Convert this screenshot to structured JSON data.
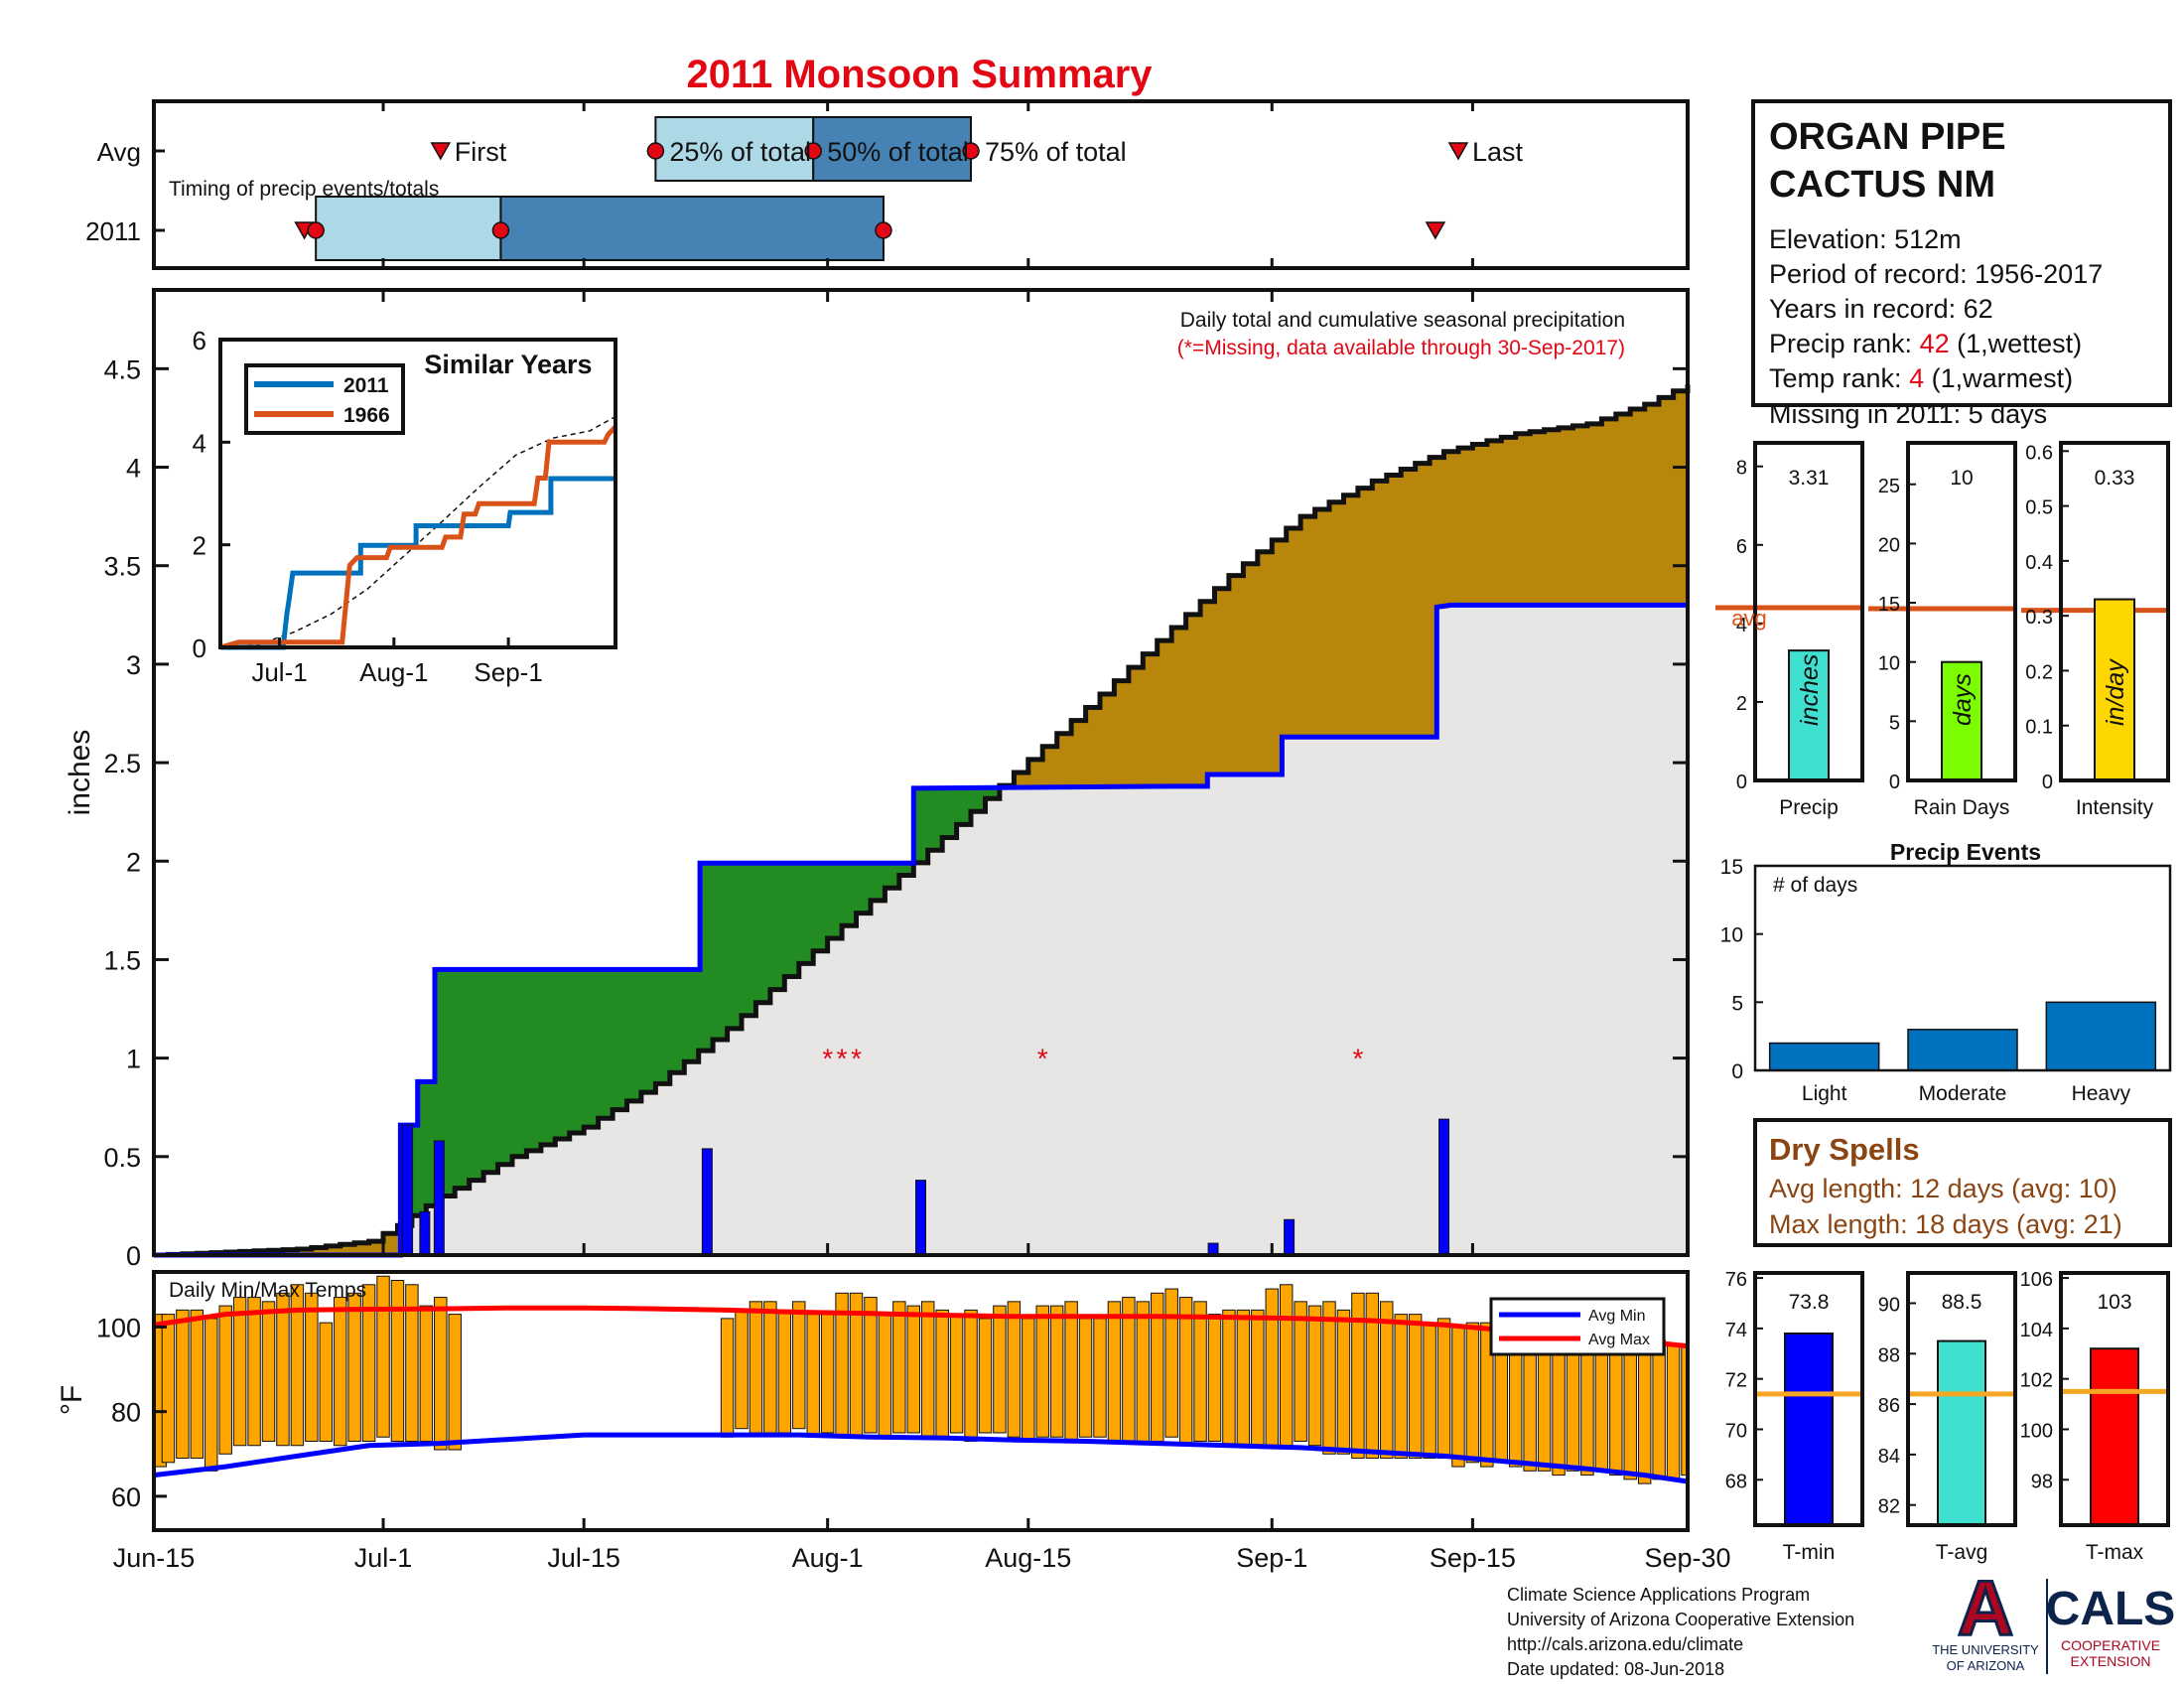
{
  "title": "2011 Monsoon Summary",
  "colors": {
    "title": "#e30613",
    "light_blue": "#add8e6",
    "steel_blue": "#4682b4",
    "above_avg": "#b8860b",
    "below_avg": "#228b22",
    "area": "#e8e6e5",
    "event_bar": "#0000ff",
    "avg_line": "#0000ff",
    "temp_bar": "#ffa500",
    "avg_min": "#0000ff",
    "avg_max": "#ff0000",
    "red": "#e30613",
    "orange": "#d95319",
    "dry": "#8b4513"
  },
  "timing": {
    "label": "Timing of precip events/totals",
    "rows": [
      "Avg",
      "2011"
    ],
    "avg_markers": {
      "first": "First",
      "p25": "25% of total",
      "p50": "50% of total",
      "p75": "75% of total",
      "last": "Last"
    },
    "avg_days": {
      "first": 20,
      "p25": 35,
      "p50": 46,
      "p75": 57,
      "last": 91
    },
    "y2011_days": {
      "first": 10.5,
      "p25_marker": 11.3,
      "p50": 24.2,
      "p75": 50.9,
      "last": 89.4
    }
  },
  "station": {
    "name_line1": "ORGAN PIPE",
    "name_line2": "CACTUS NM",
    "elevation": "Elevation: 512m",
    "period": "Period of record: 1956-2017",
    "years": "Years in record: 62",
    "precip_rank_label": "Precip rank: ",
    "precip_rank": "42",
    "precip_rank_note": " (1,wettest)",
    "temp_rank_label": "Temp rank: ",
    "temp_rank": "4",
    "temp_rank_note": " (1,warmest)",
    "missing": "Missing in 2011: 5 days"
  },
  "main_chart": {
    "note": "Daily total and cumulative seasonal precipitation",
    "note2": "(*=Missing, data available through 30-Sep-2017)",
    "ylabel": "inches",
    "ylim": [
      0,
      4.9
    ],
    "yticks": [
      "0",
      "0.5",
      "1",
      "1.5",
      "2",
      "2.5",
      "3",
      "3.5",
      "4",
      "4.5"
    ],
    "xticks": [
      {
        "d": 0,
        "l": "Jun-15"
      },
      {
        "d": 16,
        "l": "Jul-1"
      },
      {
        "d": 30,
        "l": "Jul-15"
      },
      {
        "d": 47,
        "l": "Aug-1"
      },
      {
        "d": 61,
        "l": "Aug-15"
      },
      {
        "d": 78,
        "l": "Sep-1"
      },
      {
        "d": 92,
        "l": "Sep-15"
      },
      {
        "d": 107,
        "l": "Sep-30"
      }
    ],
    "avg_cumulative": [
      [
        0,
        0
      ],
      [
        10,
        0.03
      ],
      [
        15,
        0.07
      ],
      [
        17,
        0.15
      ],
      [
        20,
        0.3
      ],
      [
        25,
        0.5
      ],
      [
        30,
        0.65
      ],
      [
        35,
        0.87
      ],
      [
        40,
        1.15
      ],
      [
        45,
        1.48
      ],
      [
        50,
        1.8
      ],
      [
        55,
        2.12
      ],
      [
        60,
        2.45
      ],
      [
        65,
        2.78
      ],
      [
        70,
        3.12
      ],
      [
        75,
        3.45
      ],
      [
        80,
        3.75
      ],
      [
        85,
        3.93
      ],
      [
        90,
        4.08
      ],
      [
        95,
        4.17
      ],
      [
        100,
        4.22
      ],
      [
        104,
        4.32
      ],
      [
        107,
        4.42
      ]
    ],
    "cumulative_2011": [
      [
        0,
        0
      ],
      [
        17.2,
        0
      ],
      [
        17.2,
        0.66
      ],
      [
        18.4,
        0.66
      ],
      [
        18.4,
        0.88
      ],
      [
        19.6,
        0.88
      ],
      [
        19.6,
        1.45
      ],
      [
        38.1,
        1.45
      ],
      [
        38.1,
        1.99
      ],
      [
        53,
        1.99
      ],
      [
        53,
        2.37
      ],
      [
        71,
        2.38
      ],
      [
        73.5,
        2.38
      ],
      [
        73.5,
        2.44
      ],
      [
        78.7,
        2.44
      ],
      [
        78.7,
        2.63
      ],
      [
        89.5,
        2.63
      ],
      [
        89.5,
        3.29
      ],
      [
        90.5,
        3.3
      ],
      [
        107,
        3.3
      ]
    ],
    "daily_bars": [
      [
        17.7,
        0.66
      ],
      [
        18.9,
        0.22
      ],
      [
        19.9,
        0.58
      ],
      [
        38.6,
        0.54
      ],
      [
        53.5,
        0.38
      ],
      [
        73.9,
        0.06
      ],
      [
        79.2,
        0.18
      ],
      [
        90,
        0.69
      ]
    ],
    "missing_days": [
      47,
      48,
      49,
      62,
      84
    ],
    "missing_y": 1.0,
    "inset": {
      "title": "Similar Years",
      "ylim": [
        0,
        6
      ],
      "yticks": [
        "0",
        "2",
        "4",
        "6"
      ],
      "xticks": [
        {
          "d": 16,
          "l": "Jul-1"
        },
        {
          "d": 47,
          "l": "Aug-1"
        },
        {
          "d": 78,
          "l": "Sep-1"
        }
      ],
      "series": [
        {
          "name": "2011",
          "color": "#0072bd",
          "points": [
            [
              0,
              0
            ],
            [
              17,
              0
            ],
            [
              18,
              0.66
            ],
            [
              18.5,
              0.88
            ],
            [
              19.6,
              1.45
            ],
            [
              38,
              1.45
            ],
            [
              38,
              1.99
            ],
            [
              53,
              1.99
            ],
            [
              53,
              2.37
            ],
            [
              78,
              2.37
            ],
            [
              78.5,
              2.63
            ],
            [
              89.5,
              2.63
            ],
            [
              89.5,
              3.29
            ],
            [
              107,
              3.29
            ]
          ]
        },
        {
          "name": "1966",
          "color": "#d95319",
          "points": [
            [
              0,
              0
            ],
            [
              5,
              0.1
            ],
            [
              33,
              0.1
            ],
            [
              35,
              1.6
            ],
            [
              37,
              1.75
            ],
            [
              45,
              1.75
            ],
            [
              46,
              1.95
            ],
            [
              60,
              1.95
            ],
            [
              61,
              2.15
            ],
            [
              65,
              2.15
            ],
            [
              66,
              2.6
            ],
            [
              69,
              2.6
            ],
            [
              70,
              2.8
            ],
            [
              85,
              2.8
            ],
            [
              86,
              3.3
            ],
            [
              88,
              3.3
            ],
            [
              89,
              4
            ],
            [
              104,
              4
            ],
            [
              105,
              4.15
            ],
            [
              107,
              4.3
            ]
          ]
        }
      ],
      "avg_points": [
        [
          0,
          0
        ],
        [
          10,
          0.05
        ],
        [
          20,
          0.3
        ],
        [
          30,
          0.65
        ],
        [
          40,
          1.15
        ],
        [
          50,
          1.8
        ],
        [
          60,
          2.45
        ],
        [
          70,
          3.12
        ],
        [
          80,
          3.75
        ],
        [
          90,
          4.08
        ],
        [
          100,
          4.22
        ],
        [
          107,
          4.5
        ]
      ]
    }
  },
  "temps": {
    "label": "Daily Min/Max Temps",
    "ylabel": "°F",
    "ylim": [
      52,
      113
    ],
    "yticks": [
      "60",
      "80",
      "100"
    ],
    "legend": [
      "Avg Min",
      "Avg Max"
    ],
    "data_days": [
      0,
      1,
      2,
      3,
      4,
      5,
      6,
      7,
      8,
      9,
      10,
      11,
      12,
      13,
      14,
      15,
      16,
      17,
      18,
      19,
      20,
      21,
      40,
      41,
      42,
      43,
      44,
      45,
      46,
      47,
      48,
      49,
      50,
      51,
      52,
      53,
      54,
      55,
      56,
      57,
      58,
      59,
      60,
      61,
      62,
      63,
      64,
      65,
      66,
      67,
      68,
      69,
      70,
      71,
      72,
      73,
      74,
      75,
      76,
      77,
      78,
      79,
      80,
      81,
      82,
      83,
      84,
      85,
      86,
      87,
      88,
      89,
      90,
      91,
      92,
      93,
      94,
      95,
      96,
      97,
      98,
      99,
      100,
      101,
      102,
      103,
      104,
      105,
      106,
      107
    ],
    "data_max": [
      103,
      103,
      104,
      104,
      102,
      105,
      107,
      107,
      106,
      108,
      110,
      108,
      101,
      107,
      108,
      110,
      112,
      111,
      110,
      105,
      107,
      103,
      102,
      104,
      106,
      106,
      104,
      106,
      103,
      103,
      108,
      108,
      107,
      103,
      106,
      105,
      106,
      104,
      103,
      104,
      102,
      105,
      106,
      102,
      105,
      105,
      106,
      102,
      102,
      106,
      107,
      106,
      108,
      109,
      107,
      106,
      103,
      104,
      104,
      104,
      109,
      110,
      106,
      105,
      106,
      104,
      108,
      108,
      106,
      103,
      103,
      101,
      102,
      100,
      101,
      101,
      100,
      102,
      100,
      99,
      99,
      99,
      97,
      99,
      98,
      96,
      96,
      97,
      96,
      96
    ],
    "data_min": [
      67,
      68,
      69,
      69,
      66,
      70,
      72,
      72,
      73,
      72,
      72,
      73,
      73,
      72,
      73,
      73,
      74,
      73,
      73,
      73,
      71,
      71,
      74,
      76,
      75,
      75,
      75,
      76,
      74,
      75,
      74,
      74,
      75,
      74,
      75,
      75,
      74,
      74,
      75,
      73,
      75,
      75,
      74,
      73,
      74,
      74,
      73,
      74,
      74,
      73,
      73,
      73,
      73,
      74,
      72,
      73,
      73,
      72,
      72,
      72,
      72,
      72,
      73,
      72,
      70,
      70,
      69,
      69,
      69,
      69,
      69,
      69,
      69,
      67,
      68,
      67,
      68,
      67,
      66,
      66,
      65,
      66,
      65,
      66,
      65,
      64,
      63,
      64,
      64,
      65
    ],
    "avg_min": [
      [
        0,
        65
      ],
      [
        5,
        67
      ],
      [
        10,
        69.5
      ],
      [
        15,
        72
      ],
      [
        20,
        72.5
      ],
      [
        25,
        73.5
      ],
      [
        30,
        74.5
      ],
      [
        40,
        74.5
      ],
      [
        45,
        74.5
      ],
      [
        50,
        74
      ],
      [
        55,
        73.8
      ],
      [
        60,
        73.3
      ],
      [
        65,
        73
      ],
      [
        70,
        72.5
      ],
      [
        75,
        72
      ],
      [
        80,
        71.5
      ],
      [
        85,
        70.5
      ],
      [
        90,
        69.5
      ],
      [
        95,
        68
      ],
      [
        100,
        66.5
      ],
      [
        104,
        65
      ],
      [
        107,
        63.5
      ]
    ],
    "avg_max": [
      [
        0,
        100.5
      ],
      [
        5,
        103
      ],
      [
        10,
        104
      ],
      [
        15,
        104.2
      ],
      [
        20,
        104.3
      ],
      [
        25,
        104.5
      ],
      [
        30,
        104.5
      ],
      [
        35,
        104.3
      ],
      [
        40,
        104
      ],
      [
        45,
        103.5
      ],
      [
        50,
        103.2
      ],
      [
        55,
        102.8
      ],
      [
        60,
        102.5
      ],
      [
        65,
        102.5
      ],
      [
        70,
        102.5
      ],
      [
        75,
        102.3
      ],
      [
        80,
        102
      ],
      [
        85,
        101.5
      ],
      [
        90,
        100.5
      ],
      [
        95,
        99
      ],
      [
        100,
        97.5
      ],
      [
        104,
        96.5
      ],
      [
        107,
        95.5
      ]
    ]
  },
  "summary_bars": [
    {
      "key": "precip",
      "label": "Precip",
      "unit": "inches",
      "value": 3.31,
      "value_label": "3.31",
      "avg": 4.4,
      "avg_label": "avg",
      "ylim": [
        0,
        8.6
      ],
      "yticks": [
        0,
        2,
        4,
        6,
        8
      ],
      "color": "#40e0d0"
    },
    {
      "key": "rain",
      "label": "Rain Days",
      "unit": "days",
      "value": 10,
      "value_label": "10",
      "avg": 14.5,
      "ylim": [
        0,
        28.5
      ],
      "yticks": [
        0,
        5,
        10,
        15,
        20,
        25
      ],
      "color": "#7cfc00"
    },
    {
      "key": "intensity",
      "label": "Intensity",
      "unit": "in/day",
      "value": 0.33,
      "value_label": "0.33",
      "avg": 0.31,
      "ylim": [
        0,
        0.615
      ],
      "yticks": [
        "0",
        "0.1",
        "0.2",
        "0.3",
        "0.4",
        "0.5",
        "0.6"
      ],
      "color": "#ffd700"
    }
  ],
  "precip_events": {
    "title": "Precip Events",
    "ylabel": "# of days",
    "ylim": [
      0,
      15
    ],
    "yticks": [
      0,
      5,
      10,
      15
    ],
    "categories": [
      "Light",
      "Moderate",
      "Heavy"
    ],
    "values": [
      2,
      3,
      5
    ],
    "color": "#0072bd"
  },
  "dry_spells": {
    "title": "Dry Spells",
    "avg_length": "Avg length: 12 days (avg: 10)",
    "max_length": "Max length: 18 days (avg: 21)"
  },
  "temp_bars": [
    {
      "label": "T-min",
      "value": 73.8,
      "value_label": "73.8",
      "avg": 71.4,
      "ylim": [
        66.2,
        76.2
      ],
      "yticks": [
        68,
        70,
        72,
        74,
        76
      ],
      "color": "#0000ff"
    },
    {
      "label": "T-avg",
      "value": 88.5,
      "value_label": "88.5",
      "avg": 86.4,
      "ylim": [
        81.2,
        91.2
      ],
      "yticks": [
        82,
        84,
        86,
        88,
        90
      ],
      "color": "#40e0d0"
    },
    {
      "label": "T-max",
      "value": 103.2,
      "value_label": "103",
      "avg": 101.5,
      "ylim": [
        96.2,
        106.2
      ],
      "yticks": [
        98,
        100,
        102,
        104,
        106
      ],
      "color": "#ff0000"
    }
  ],
  "footer": {
    "line1": "Climate Science Applications Program",
    "line2": "University of Arizona Cooperative Extension",
    "line3": "http://cals.arizona.edu/climate",
    "line4": " Date updated: 08-Jun-2018",
    "ua_letter": "A",
    "ua_text1": "THE UNIVERSITY",
    "ua_text2": "OF ARIZONA",
    "cals": "CALS",
    "cals_sub1": "COOPERATIVE",
    "cals_sub2": "EXTENSION"
  }
}
